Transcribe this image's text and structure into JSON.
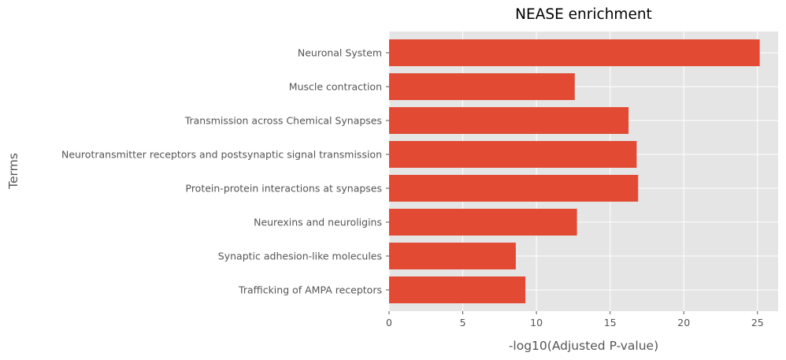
{
  "chart_data": {
    "type": "bar",
    "orientation": "horizontal",
    "title": "NEASE enrichment",
    "xlabel": "-log10(Adjusted P-value)",
    "ylabel": "Terms",
    "categories": [
      "Neuronal System",
      "Muscle contraction",
      "Transmission across Chemical Synapses",
      "Neurotransmitter receptors and postsynaptic signal transmission",
      "Protein-protein interactions at synapses",
      "Neurexins and neuroligins",
      "Synaptic adhesion-like molecules",
      "Trafficking of AMPA receptors"
    ],
    "values": [
      25.15,
      12.6,
      16.25,
      16.8,
      16.9,
      12.75,
      8.6,
      9.25
    ],
    "xlim": [
      0,
      26.4
    ],
    "xticks": [
      "0",
      "5",
      "10",
      "15",
      "20",
      "25"
    ],
    "grid": true,
    "legend": "none",
    "colors": {
      "bar": "#E24A33",
      "plot_background": "#E5E5E5",
      "grid": "#FFFFFF"
    }
  }
}
